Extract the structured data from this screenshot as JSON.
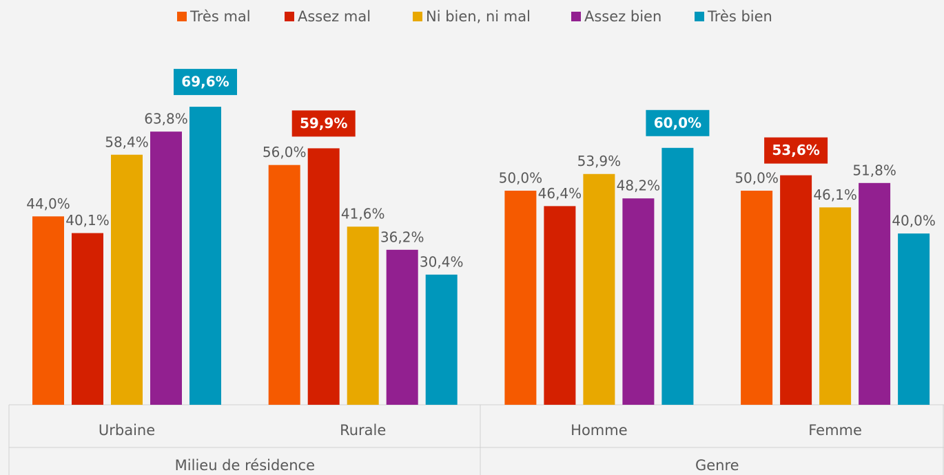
{
  "chart_data": {
    "type": "bar",
    "categories": [
      "Urbaine",
      "Rurale",
      "Homme",
      "Femme"
    ],
    "groups": [
      "Milieu de résidence",
      "Genre"
    ],
    "series": [
      {
        "name": "Très mal",
        "color": "#f55a00",
        "values": [
          44.0,
          56.0,
          50.0,
          50.0
        ],
        "value_labels": [
          "44,0%",
          "56,0%",
          "50,0%",
          "50,0%"
        ]
      },
      {
        "name": "Assez mal",
        "color": "#d42000",
        "values": [
          40.1,
          59.9,
          46.4,
          53.6
        ],
        "value_labels": [
          "40,1%",
          "59,9%",
          "46,4%",
          "53,6%"
        ]
      },
      {
        "name": "Ni bien, ni mal",
        "color": "#e8a800",
        "values": [
          58.4,
          41.6,
          53.9,
          46.1
        ],
        "value_labels": [
          "58,4%",
          "41,6%",
          "53,9%",
          "46,1%"
        ]
      },
      {
        "name": "Assez bien",
        "color": "#922090",
        "values": [
          63.8,
          36.2,
          48.2,
          51.8
        ],
        "value_labels": [
          "63,8%",
          "36,2%",
          "48,2%",
          "51,8%"
        ]
      },
      {
        "name": "Très bien",
        "color": "#0097bb",
        "values": [
          69.6,
          30.4,
          60.0,
          40.0
        ],
        "value_labels": [
          "69,6%",
          "30,4%",
          "60,0%",
          "40,0%"
        ]
      }
    ]
  }
}
